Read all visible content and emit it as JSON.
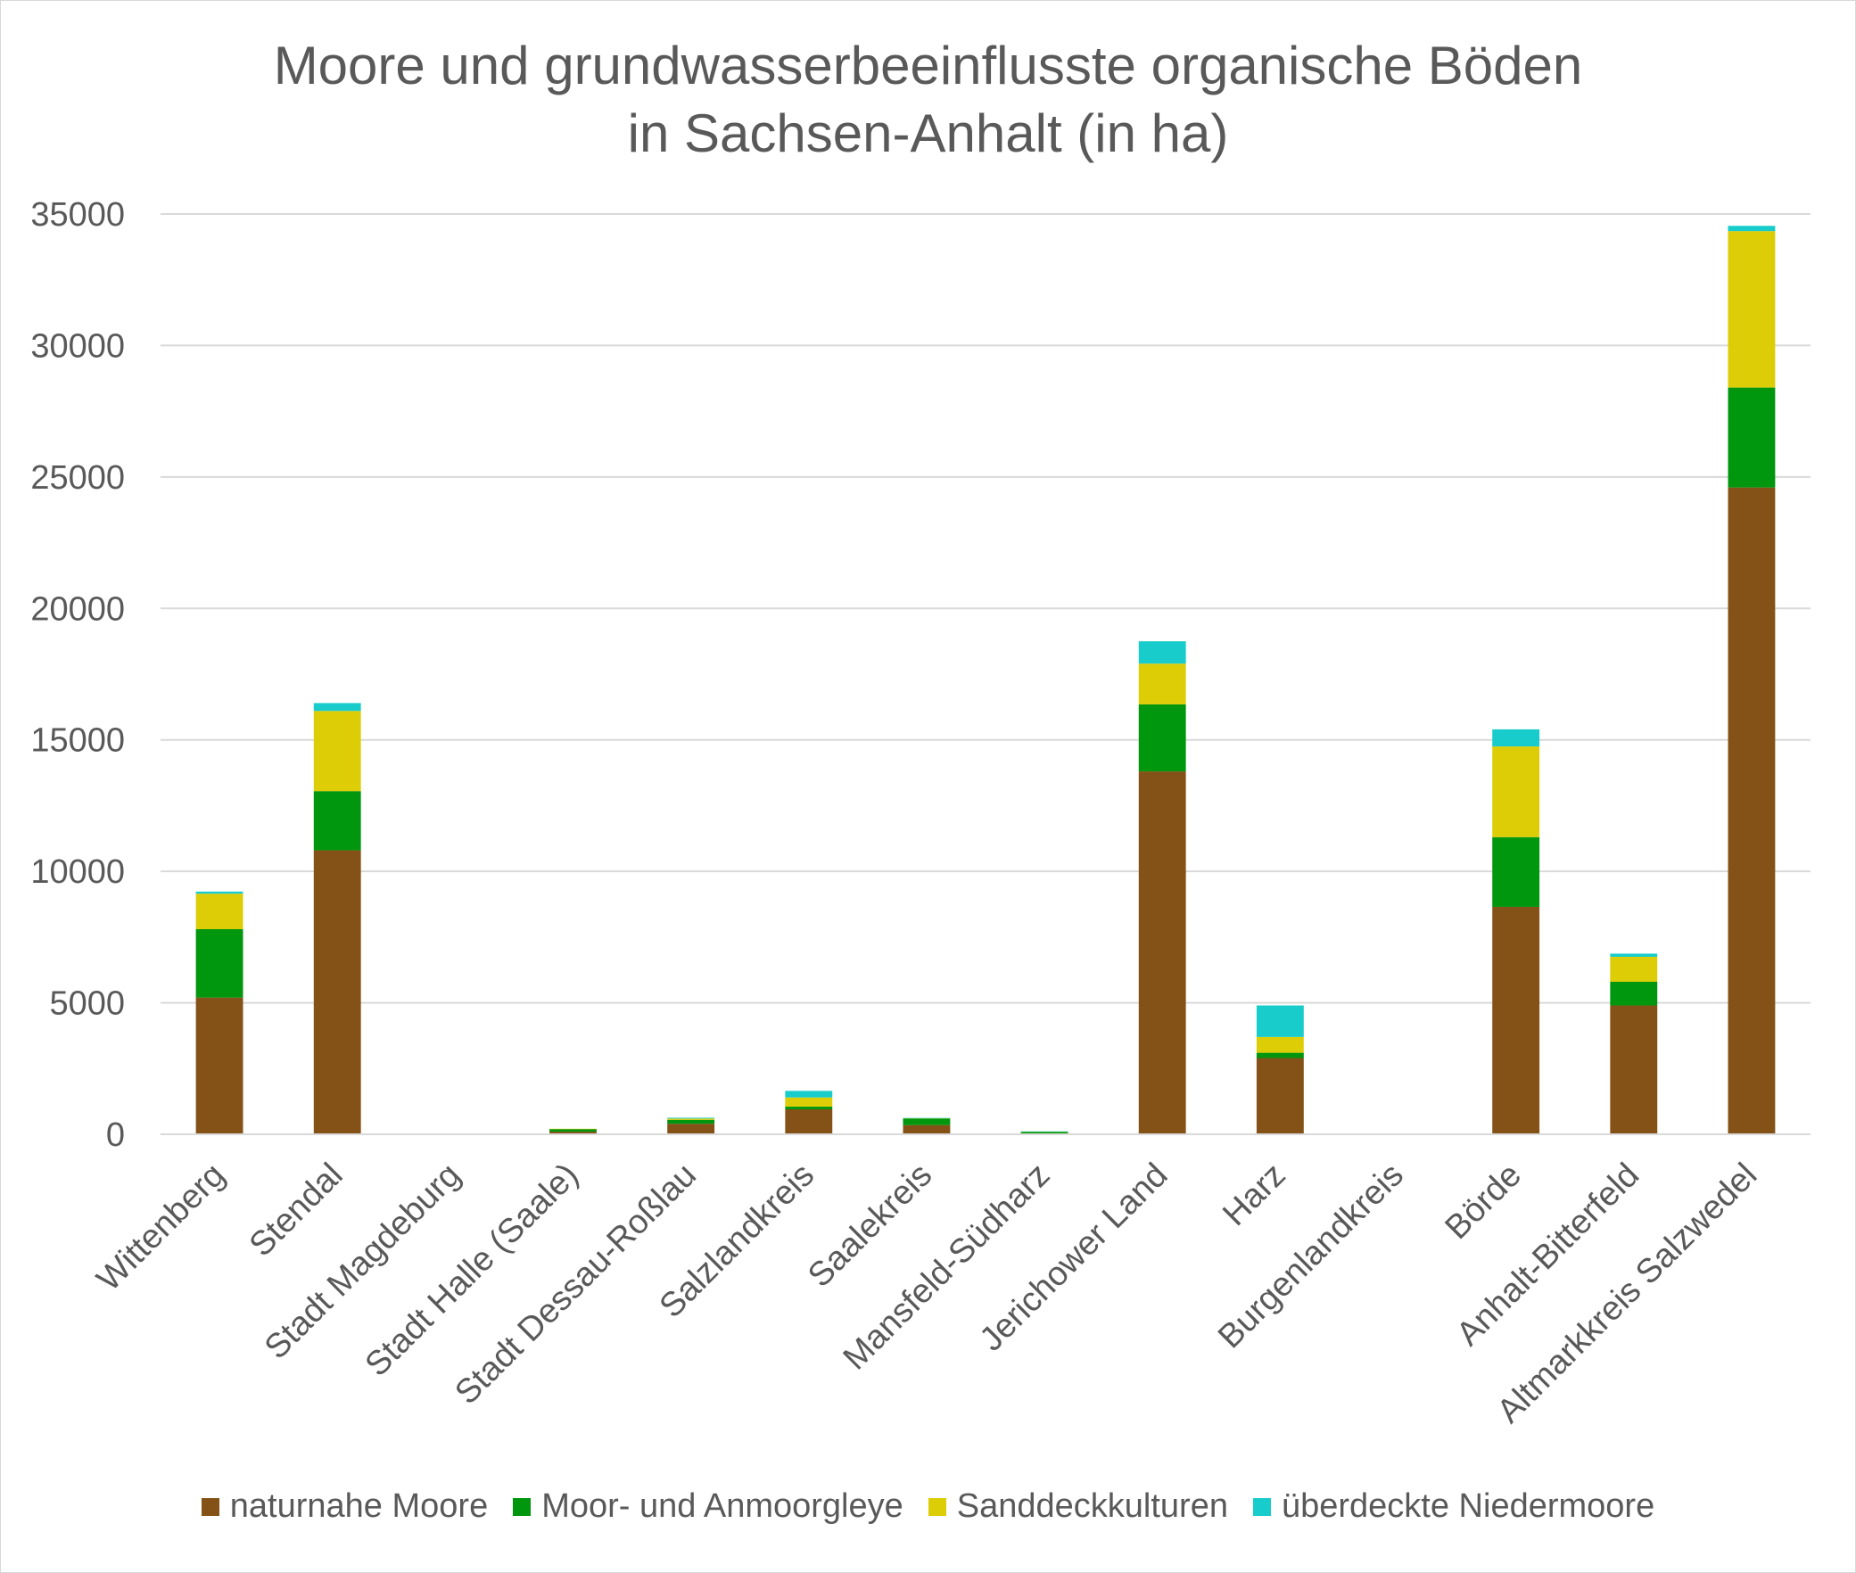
{
  "chart_data": {
    "type": "bar",
    "stacked": true,
    "title": "Moore und grundwasserbeeinflusste organische Böden",
    "subtitle": "in Sachsen-Anhalt (in ha)",
    "xlabel": "",
    "ylabel": "",
    "ylim": [
      0,
      35000
    ],
    "yticks": [
      0,
      5000,
      10000,
      15000,
      20000,
      25000,
      30000,
      35000
    ],
    "grid": true,
    "legend_position": "bottom",
    "categories": [
      "Wittenberg",
      "Stendal",
      "Stadt Magdeburg",
      "Stadt Halle (Saale)",
      "Stadt Dessau-Roßlau",
      "Salzlandkreis",
      "Saalekreis",
      "Mansfeld-Südharz",
      "Jerichower Land",
      "Harz",
      "Burgenlandkreis",
      "Börde",
      "Anhalt-Bitterfeld",
      "Altmarkkreis Salzwedel"
    ],
    "series": [
      {
        "name": "naturnahe Moore",
        "color": "#845216",
        "values": [
          5200,
          10800,
          0,
          100,
          400,
          950,
          350,
          30,
          13800,
          2900,
          0,
          8650,
          4900,
          24600
        ]
      },
      {
        "name": "Moor- und Anmoorgleye",
        "color": "#00960d",
        "values": [
          2600,
          2250,
          0,
          100,
          150,
          100,
          250,
          60,
          2550,
          200,
          0,
          2650,
          900,
          3800
        ]
      },
      {
        "name": "Sanddeckkulturen",
        "color": "#dccd06",
        "values": [
          1350,
          3050,
          0,
          10,
          50,
          350,
          10,
          10,
          1550,
          600,
          0,
          3450,
          950,
          5950
        ]
      },
      {
        "name": "überdeckte Niedermoore",
        "color": "#18cccc",
        "values": [
          80,
          300,
          0,
          0,
          30,
          250,
          10,
          10,
          850,
          1200,
          0,
          650,
          120,
          200
        ]
      }
    ]
  }
}
